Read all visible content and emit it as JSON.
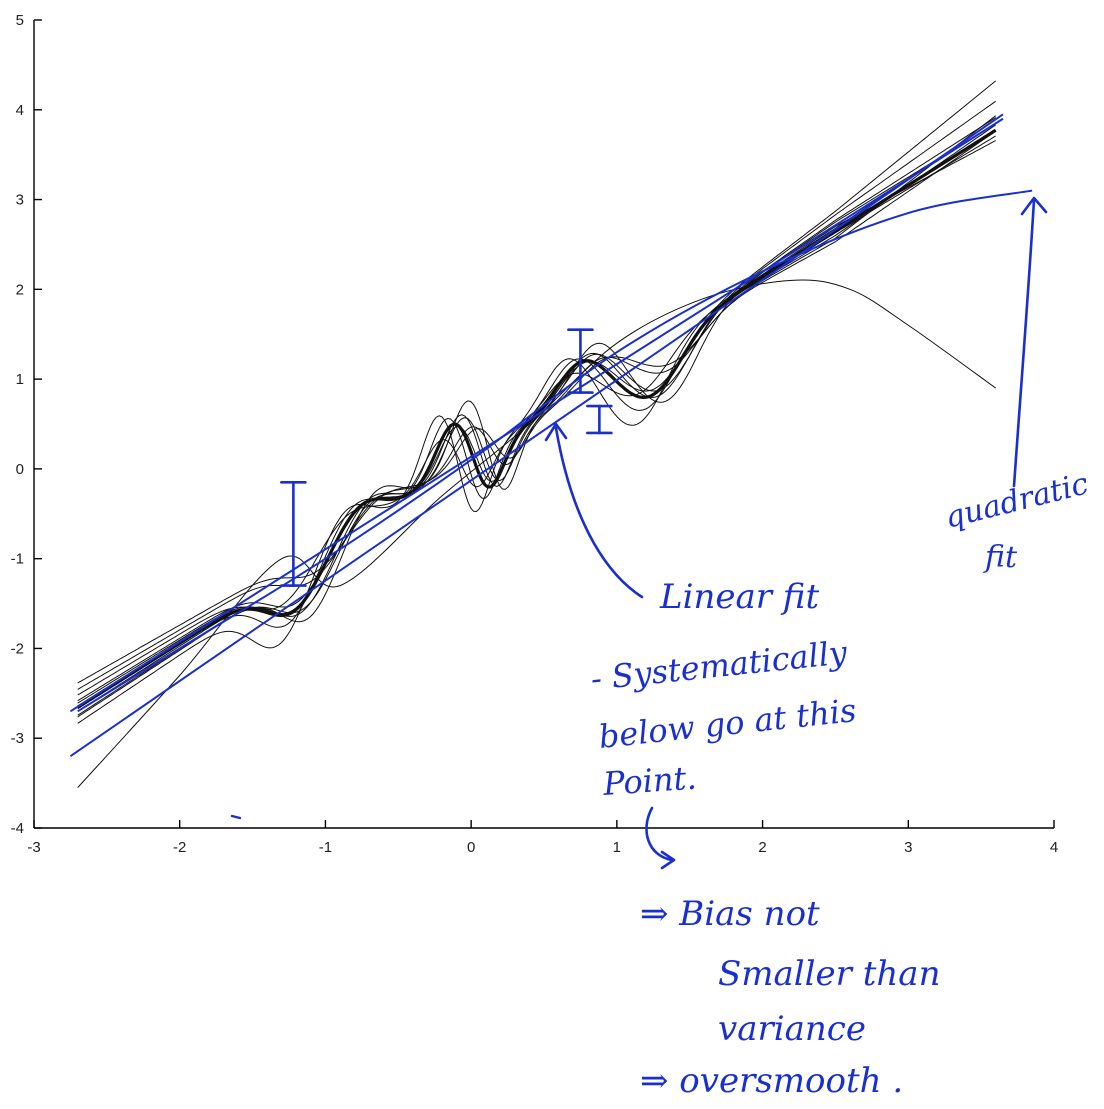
{
  "chart_data": {
    "type": "line",
    "title": "",
    "xlabel": "",
    "ylabel": "",
    "xlim": [
      -3,
      4
    ],
    "ylim": [
      -4,
      5
    ],
    "x_ticks": [
      -3,
      -2,
      -1,
      0,
      1,
      2,
      3,
      4
    ],
    "y_ticks": [
      -4,
      -3,
      -2,
      -1,
      0,
      1,
      2,
      3,
      4,
      5
    ],
    "x_tick_labels": [
      "-3",
      "-2",
      "-1",
      "0",
      "1",
      "2",
      "3",
      "4"
    ],
    "y_tick_labels": [
      "-4",
      "-3",
      "-2",
      "-1",
      "0",
      "1",
      "2",
      "3",
      "4",
      "5"
    ],
    "grid": false,
    "x_range": [
      -2.7,
      3.6
    ],
    "black_fits": [
      {
        "offset": 0.05,
        "slope": 0.03,
        "wiggle": 1.0,
        "phase": 0.0,
        "width": 1.0
      },
      {
        "offset": -0.12,
        "slope": 0.1,
        "wiggle": 1.3,
        "phase": 0.1,
        "width": 1.0
      },
      {
        "offset": 0.15,
        "slope": -0.05,
        "wiggle": 0.8,
        "phase": -0.08,
        "width": 1.0
      },
      {
        "offset": -0.05,
        "slope": 0.18,
        "wiggle": 1.1,
        "phase": 0.05,
        "width": 1.0
      },
      {
        "offset": 0.22,
        "slope": -0.12,
        "wiggle": 0.7,
        "phase": 0.12,
        "width": 1.0
      },
      {
        "offset": -0.2,
        "slope": 0.05,
        "wiggle": 1.4,
        "phase": -0.1,
        "width": 1.0
      },
      {
        "offset": 0.08,
        "slope": 0.22,
        "wiggle": 0.9,
        "phase": 0.02,
        "width": 1.0
      },
      {
        "offset": -0.02,
        "slope": -0.02,
        "wiggle": 1.2,
        "phase": -0.04,
        "width": 1.0
      },
      {
        "offset": 0.3,
        "slope": -0.08,
        "wiggle": 0.6,
        "phase": 0.15,
        "width": 1.0
      },
      {
        "offset": -0.1,
        "slope": 0.12,
        "wiggle": 1.0,
        "phase": 0.07,
        "width": 1.0
      },
      {
        "offset": 0.0,
        "slope": 0.0,
        "wiggle": 1.0,
        "phase": 0.0,
        "width": 3.2
      }
    ],
    "outlier_fit": {
      "points": [
        [
          -2.7,
          -3.55
        ],
        [
          -2.0,
          -2.3
        ],
        [
          -1.3,
          -1.0
        ],
        [
          -0.9,
          -1.3
        ],
        [
          -0.2,
          -0.3
        ],
        [
          0.4,
          0.5
        ],
        [
          1.0,
          1.4
        ],
        [
          1.6,
          1.9
        ],
        [
          2.2,
          2.1
        ],
        [
          2.6,
          2.0
        ],
        [
          3.0,
          1.6
        ],
        [
          3.6,
          0.9
        ]
      ]
    },
    "linear_fit": {
      "x": [
        -2.75,
        3.65
      ],
      "y": [
        -2.7,
        3.9
      ]
    },
    "linear_fit_2": {
      "x": [
        -2.75,
        3.65
      ],
      "y": [
        -3.2,
        3.95
      ]
    },
    "quadratic_fit": {
      "x": [
        -2.7,
        -2.0,
        -1.0,
        0.0,
        1.0,
        2.0,
        3.0,
        3.85
      ],
      "y": [
        -2.7,
        -2.0,
        -1.0,
        0.1,
        1.3,
        2.2,
        2.85,
        3.1
      ]
    },
    "variance_bars": [
      {
        "x": -1.22,
        "y_low": -1.3,
        "y_high": -0.15
      },
      {
        "x": 0.75,
        "y_low": 0.85,
        "y_high": 1.55
      },
      {
        "x": 0.88,
        "y_low": 0.4,
        "y_high": 0.7
      }
    ]
  },
  "annotations": {
    "quadratic": [
      "quadratic",
      "fit"
    ],
    "linear": [
      "Linear fit",
      "- Systematically",
      "below go at this",
      "Point."
    ],
    "conclusion": [
      "⇒ Bias not",
      "Smaller than",
      "variance",
      "⇒ oversmooth ."
    ]
  },
  "colors": {
    "fit_black": "#111111",
    "ink_blue": "#1a2fd0",
    "axis": "#000000"
  }
}
